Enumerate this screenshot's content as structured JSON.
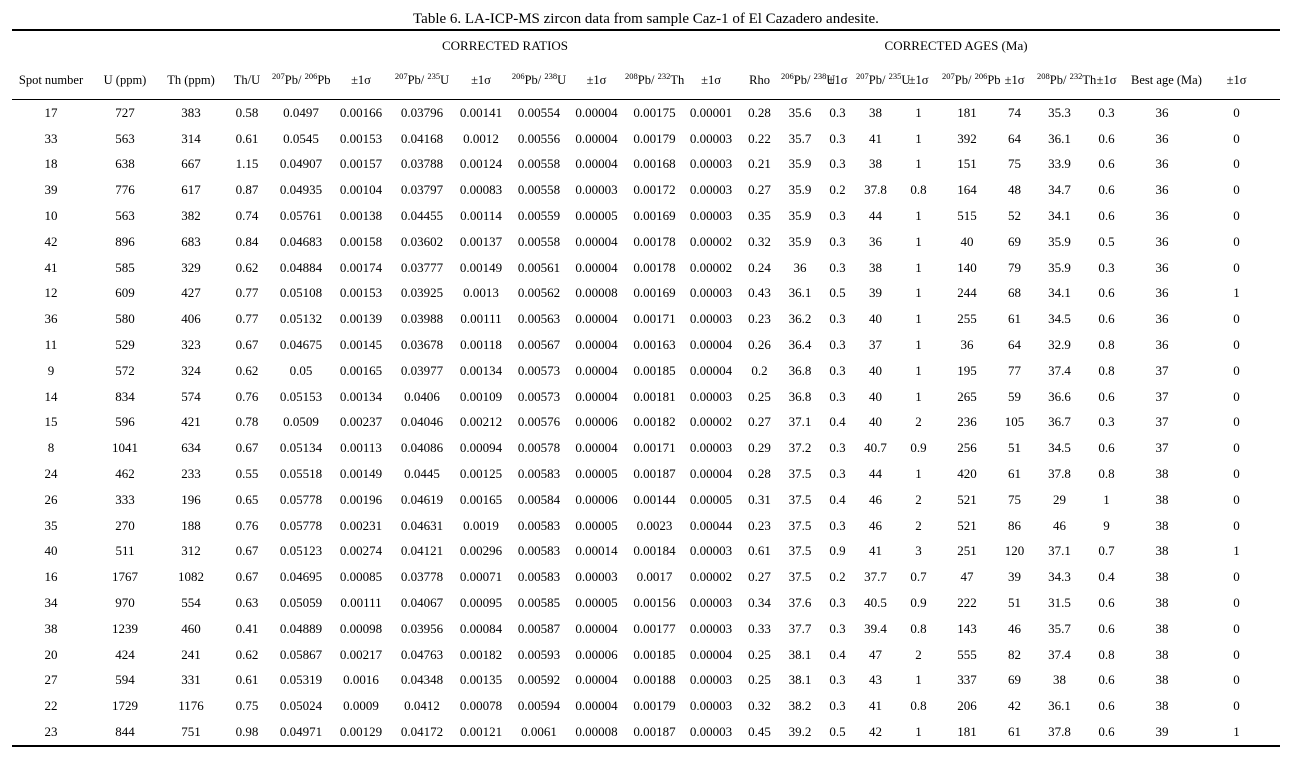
{
  "title": "Table 6. LA-ICP-MS zircon data from sample Caz-1 of El Cazadero andesite.",
  "table": {
    "group_headers": [
      {
        "label": "",
        "span": 4
      },
      {
        "label": "CORRECTED RATIOS",
        "span": 8
      },
      {
        "label": "",
        "span": 1
      },
      {
        "label": "CORRECTED AGES (Ma)",
        "span": 8
      },
      {
        "label": "",
        "span": 2
      }
    ],
    "columns": [
      {
        "id": "spot-number",
        "label": "Spot number",
        "width": 78
      },
      {
        "id": "u-ppm",
        "label": "U (ppm)",
        "width": 70
      },
      {
        "id": "th-ppm",
        "label": "Th (ppm)",
        "width": 62
      },
      {
        "id": "th-u",
        "label": "Th/U",
        "width": 50
      },
      {
        "id": "ratio-207pb-206pb",
        "label": "^207^Pb/ ^206^Pb",
        "width": 58
      },
      {
        "id": "err-ratio-207pb-206pb",
        "label": "±1σ",
        "width": 62
      },
      {
        "id": "ratio-207pb-235u",
        "label": "^207^Pb/ ^235^U",
        "width": 60
      },
      {
        "id": "err-ratio-207pb-235u",
        "label": "±1σ",
        "width": 58
      },
      {
        "id": "ratio-206pb-238u",
        "label": "^206^Pb/ ^238^U",
        "width": 58
      },
      {
        "id": "err-ratio-206pb-238u",
        "label": "±1σ",
        "width": 57
      },
      {
        "id": "ratio-208pb-232th",
        "label": "^208^Pb/ ^232^Th",
        "width": 59
      },
      {
        "id": "err-ratio-208pb-232th",
        "label": "±1σ",
        "width": 54
      },
      {
        "id": "rho",
        "label": "Rho",
        "width": 43
      },
      {
        "id": "age-206pb-238u",
        "label": "^206^Pb/ ^238^U",
        "width": 38
      },
      {
        "id": "err-age-206pb-238u",
        "label": "±1σ",
        "width": 37
      },
      {
        "id": "age-207pb-235u",
        "label": "^207^Pb/ ^235^U",
        "width": 39
      },
      {
        "id": "err-age-207pb-235u",
        "label": "±1σ",
        "width": 47
      },
      {
        "id": "age-207pb-206pb",
        "label": "^207^Pb/ ^206^Pb",
        "width": 50
      },
      {
        "id": "err-age-207pb-206pb",
        "label": "±1σ",
        "width": 45
      },
      {
        "id": "age-208pb-232th",
        "label": "^208^Pb/ ^232^Th",
        "width": 45
      },
      {
        "id": "err-age-208pb-232th",
        "label": "±1σ",
        "width": 49
      },
      {
        "id": "best-age-ma",
        "label": "Best age (Ma)",
        "width": 62
      },
      {
        "id": "err-best-age",
        "label": "±1σ",
        "width": 87
      }
    ],
    "rows": [
      [
        "17",
        "727",
        "383",
        "0.58",
        "0.0497",
        "0.00166",
        "0.03796",
        "0.00141",
        "0.00554",
        "0.00004",
        "0.00175",
        "0.00001",
        "0.28",
        "35.6",
        "0.3",
        "38",
        "1",
        "181",
        "74",
        "35.3",
        "0.3",
        "36",
        "0"
      ],
      [
        "33",
        "563",
        "314",
        "0.61",
        "0.0545",
        "0.00153",
        "0.04168",
        "0.0012",
        "0.00556",
        "0.00004",
        "0.00179",
        "0.00003",
        "0.22",
        "35.7",
        "0.3",
        "41",
        "1",
        "392",
        "64",
        "36.1",
        "0.6",
        "36",
        "0"
      ],
      [
        "18",
        "638",
        "667",
        "1.15",
        "0.04907",
        "0.00157",
        "0.03788",
        "0.00124",
        "0.00558",
        "0.00004",
        "0.00168",
        "0.00003",
        "0.21",
        "35.9",
        "0.3",
        "38",
        "1",
        "151",
        "75",
        "33.9",
        "0.6",
        "36",
        "0"
      ],
      [
        "39",
        "776",
        "617",
        "0.87",
        "0.04935",
        "0.00104",
        "0.03797",
        "0.00083",
        "0.00558",
        "0.00003",
        "0.00172",
        "0.00003",
        "0.27",
        "35.9",
        "0.2",
        "37.8",
        "0.8",
        "164",
        "48",
        "34.7",
        "0.6",
        "36",
        "0"
      ],
      [
        "10",
        "563",
        "382",
        "0.74",
        "0.05761",
        "0.00138",
        "0.04455",
        "0.00114",
        "0.00559",
        "0.00005",
        "0.00169",
        "0.00003",
        "0.35",
        "35.9",
        "0.3",
        "44",
        "1",
        "515",
        "52",
        "34.1",
        "0.6",
        "36",
        "0"
      ],
      [
        "42",
        "896",
        "683",
        "0.84",
        "0.04683",
        "0.00158",
        "0.03602",
        "0.00137",
        "0.00558",
        "0.00004",
        "0.00178",
        "0.00002",
        "0.32",
        "35.9",
        "0.3",
        "36",
        "1",
        "40",
        "69",
        "35.9",
        "0.5",
        "36",
        "0"
      ],
      [
        "41",
        "585",
        "329",
        "0.62",
        "0.04884",
        "0.00174",
        "0.03777",
        "0.00149",
        "0.00561",
        "0.00004",
        "0.00178",
        "0.00002",
        "0.24",
        "36",
        "0.3",
        "38",
        "1",
        "140",
        "79",
        "35.9",
        "0.3",
        "36",
        "0"
      ],
      [
        "12",
        "609",
        "427",
        "0.77",
        "0.05108",
        "0.00153",
        "0.03925",
        "0.0013",
        "0.00562",
        "0.00008",
        "0.00169",
        "0.00003",
        "0.43",
        "36.1",
        "0.5",
        "39",
        "1",
        "244",
        "68",
        "34.1",
        "0.6",
        "36",
        "1"
      ],
      [
        "36",
        "580",
        "406",
        "0.77",
        "0.05132",
        "0.00139",
        "0.03988",
        "0.00111",
        "0.00563",
        "0.00004",
        "0.00171",
        "0.00003",
        "0.23",
        "36.2",
        "0.3",
        "40",
        "1",
        "255",
        "61",
        "34.5",
        "0.6",
        "36",
        "0"
      ],
      [
        "11",
        "529",
        "323",
        "0.67",
        "0.04675",
        "0.00145",
        "0.03678",
        "0.00118",
        "0.00567",
        "0.00004",
        "0.00163",
        "0.00004",
        "0.26",
        "36.4",
        "0.3",
        "37",
        "1",
        "36",
        "64",
        "32.9",
        "0.8",
        "36",
        "0"
      ],
      [
        "9",
        "572",
        "324",
        "0.62",
        "0.05",
        "0.00165",
        "0.03977",
        "0.00134",
        "0.00573",
        "0.00004",
        "0.00185",
        "0.00004",
        "0.2",
        "36.8",
        "0.3",
        "40",
        "1",
        "195",
        "77",
        "37.4",
        "0.8",
        "37",
        "0"
      ],
      [
        "14",
        "834",
        "574",
        "0.76",
        "0.05153",
        "0.00134",
        "0.0406",
        "0.00109",
        "0.00573",
        "0.00004",
        "0.00181",
        "0.00003",
        "0.25",
        "36.8",
        "0.3",
        "40",
        "1",
        "265",
        "59",
        "36.6",
        "0.6",
        "37",
        "0"
      ],
      [
        "15",
        "596",
        "421",
        "0.78",
        "0.0509",
        "0.00237",
        "0.04046",
        "0.00212",
        "0.00576",
        "0.00006",
        "0.00182",
        "0.00002",
        "0.27",
        "37.1",
        "0.4",
        "40",
        "2",
        "236",
        "105",
        "36.7",
        "0.3",
        "37",
        "0"
      ],
      [
        "8",
        "1041",
        "634",
        "0.67",
        "0.05134",
        "0.00113",
        "0.04086",
        "0.00094",
        "0.00578",
        "0.00004",
        "0.00171",
        "0.00003",
        "0.29",
        "37.2",
        "0.3",
        "40.7",
        "0.9",
        "256",
        "51",
        "34.5",
        "0.6",
        "37",
        "0"
      ],
      [
        "24",
        "462",
        "233",
        "0.55",
        "0.05518",
        "0.00149",
        "0.0445",
        "0.00125",
        "0.00583",
        "0.00005",
        "0.00187",
        "0.00004",
        "0.28",
        "37.5",
        "0.3",
        "44",
        "1",
        "420",
        "61",
        "37.8",
        "0.8",
        "38",
        "0"
      ],
      [
        "26",
        "333",
        "196",
        "0.65",
        "0.05778",
        "0.00196",
        "0.04619",
        "0.00165",
        "0.00584",
        "0.00006",
        "0.00144",
        "0.00005",
        "0.31",
        "37.5",
        "0.4",
        "46",
        "2",
        "521",
        "75",
        "29",
        "1",
        "38",
        "0"
      ],
      [
        "35",
        "270",
        "188",
        "0.76",
        "0.05778",
        "0.00231",
        "0.04631",
        "0.0019",
        "0.00583",
        "0.00005",
        "0.0023",
        "0.00044",
        "0.23",
        "37.5",
        "0.3",
        "46",
        "2",
        "521",
        "86",
        "46",
        "9",
        "38",
        "0"
      ],
      [
        "40",
        "511",
        "312",
        "0.67",
        "0.05123",
        "0.00274",
        "0.04121",
        "0.00296",
        "0.00583",
        "0.00014",
        "0.00184",
        "0.00003",
        "0.61",
        "37.5",
        "0.9",
        "41",
        "3",
        "251",
        "120",
        "37.1",
        "0.7",
        "38",
        "1"
      ],
      [
        "16",
        "1767",
        "1082",
        "0.67",
        "0.04695",
        "0.00085",
        "0.03778",
        "0.00071",
        "0.00583",
        "0.00003",
        "0.0017",
        "0.00002",
        "0.27",
        "37.5",
        "0.2",
        "37.7",
        "0.7",
        "47",
        "39",
        "34.3",
        "0.4",
        "38",
        "0"
      ],
      [
        "34",
        "970",
        "554",
        "0.63",
        "0.05059",
        "0.00111",
        "0.04067",
        "0.00095",
        "0.00585",
        "0.00005",
        "0.00156",
        "0.00003",
        "0.34",
        "37.6",
        "0.3",
        "40.5",
        "0.9",
        "222",
        "51",
        "31.5",
        "0.6",
        "38",
        "0"
      ],
      [
        "38",
        "1239",
        "460",
        "0.41",
        "0.04889",
        "0.00098",
        "0.03956",
        "0.00084",
        "0.00587",
        "0.00004",
        "0.00177",
        "0.00003",
        "0.33",
        "37.7",
        "0.3",
        "39.4",
        "0.8",
        "143",
        "46",
        "35.7",
        "0.6",
        "38",
        "0"
      ],
      [
        "20",
        "424",
        "241",
        "0.62",
        "0.05867",
        "0.00217",
        "0.04763",
        "0.00182",
        "0.00593",
        "0.00006",
        "0.00185",
        "0.00004",
        "0.25",
        "38.1",
        "0.4",
        "47",
        "2",
        "555",
        "82",
        "37.4",
        "0.8",
        "38",
        "0"
      ],
      [
        "27",
        "594",
        "331",
        "0.61",
        "0.05319",
        "0.0016",
        "0.04348",
        "0.00135",
        "0.00592",
        "0.00004",
        "0.00188",
        "0.00003",
        "0.25",
        "38.1",
        "0.3",
        "43",
        "1",
        "337",
        "69",
        "38",
        "0.6",
        "38",
        "0"
      ],
      [
        "22",
        "1729",
        "1176",
        "0.75",
        "0.05024",
        "0.0009",
        "0.0412",
        "0.00078",
        "0.00594",
        "0.00004",
        "0.00179",
        "0.00003",
        "0.32",
        "38.2",
        "0.3",
        "41",
        "0.8",
        "206",
        "42",
        "36.1",
        "0.6",
        "38",
        "0"
      ],
      [
        "23",
        "844",
        "751",
        "0.98",
        "0.04971",
        "0.00129",
        "0.04172",
        "0.00121",
        "0.0061",
        "0.00008",
        "0.00187",
        "0.00003",
        "0.45",
        "39.2",
        "0.5",
        "42",
        "1",
        "181",
        "61",
        "37.8",
        "0.6",
        "39",
        "1"
      ]
    ]
  }
}
